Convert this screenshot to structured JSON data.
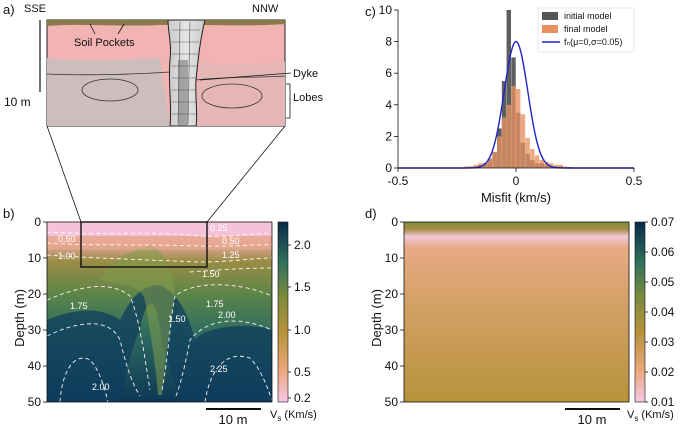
{
  "panels": {
    "a": {
      "label": "a)",
      "left_dir": "SSE",
      "right_dir": "NNW",
      "soil_pockets": "Soil Pockets",
      "dyke": "Dyke",
      "lobes": "Lobes",
      "scale": "10 m"
    },
    "b": {
      "label": "b)",
      "ylabel": "Depth (m)",
      "yticks": [
        "0",
        "10",
        "20",
        "30",
        "40",
        "50"
      ],
      "scalebar": "10 m",
      "cbar_ticks": [
        "2.0",
        "1.5",
        "1.0",
        "0.5",
        "0.2"
      ],
      "cbar_label": "V",
      "cbar_sub": "s",
      "cbar_units": " (Km/s)",
      "contour_labels": [
        "0.50",
        "0.25",
        "1.00",
        "0.50",
        "1.25",
        "1.50",
        "1.75",
        "1.75",
        "1.50",
        "2.00",
        "2.25",
        "2.00"
      ]
    },
    "d": {
      "label": "d)",
      "ylabel": "Depth (m)",
      "yticks": [
        "0",
        "10",
        "20",
        "30",
        "40",
        "50"
      ],
      "scalebar": "10 m",
      "cbar_ticks": [
        "0.07",
        "0.06",
        "0.05",
        "0.04",
        "0.03",
        "0.02",
        "0.01"
      ],
      "cbar_label": "V",
      "cbar_sub": "s",
      "cbar_units": " (Km/s)"
    }
  },
  "chart_data": [
    {
      "panel": "c",
      "label": "c)",
      "type": "bar",
      "xlabel": "Misfit (km/s)",
      "ylabel": "",
      "xlim": [
        -0.5,
        0.5
      ],
      "ylim": [
        0,
        10
      ],
      "xticks": [
        "-0.5",
        "0",
        "0.5"
      ],
      "yticks": [
        "0",
        "2",
        "4",
        "6",
        "8",
        "10"
      ],
      "bin_width": 0.02,
      "bin_centers": [
        -0.21,
        -0.19,
        -0.17,
        -0.15,
        -0.13,
        -0.11,
        -0.09,
        -0.07,
        -0.05,
        -0.03,
        -0.01,
        0.01,
        0.03,
        0.05,
        0.07,
        0.09,
        0.11,
        0.13,
        0.15,
        0.17,
        0.19,
        0.21,
        0.23
      ],
      "series": [
        {
          "name": "initial model",
          "color": "#555555",
          "values": [
            0.05,
            0.1,
            0.1,
            0.2,
            0.3,
            0.6,
            1.0,
            2.5,
            5.5,
            10.2,
            7.0,
            3.5,
            1.6,
            0.9,
            0.5,
            0.3,
            0.3,
            0.2,
            0.1,
            0.1,
            0.1,
            0.05,
            0.05
          ]
        },
        {
          "name": "final model",
          "color": "#e8915e",
          "values": [
            0.1,
            0.1,
            0.2,
            0.3,
            0.3,
            0.6,
            1.0,
            2.0,
            3.2,
            4.0,
            5.2,
            5.0,
            3.4,
            1.9,
            1.2,
            0.8,
            0.5,
            0.4,
            0.3,
            0.2,
            0.2,
            0.1,
            0.05
          ]
        },
        {
          "name": "fₙ(μ=0,σ=0.05)",
          "type": "line",
          "color": "#2222cc",
          "mu": 0,
          "sigma": 0.05,
          "peak": 8.0
        }
      ],
      "legend_loc": "top-right"
    }
  ]
}
